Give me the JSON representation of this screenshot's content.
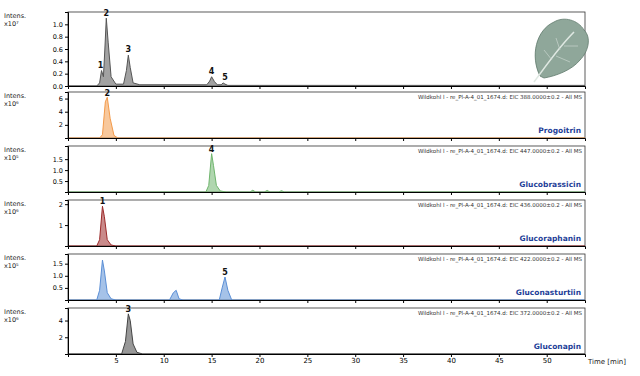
{
  "chart_data": [
    {
      "type": "line",
      "ylabel": [
        "Intens.",
        "x10⁷"
      ],
      "x": [
        0,
        3.0,
        3.3,
        3.5,
        3.7,
        3.85,
        4.0,
        4.2,
        4.5,
        5.0,
        5.8,
        6.1,
        6.3,
        6.5,
        6.8,
        7.5,
        14.5,
        14.8,
        15.0,
        15.3,
        15.6,
        16.0,
        16.2,
        16.4,
        16.7,
        20,
        30,
        40,
        54
      ],
      "series": [
        {
          "color": "#555555",
          "values": [
            0,
            0,
            0.05,
            0.25,
            0.15,
            0.6,
            1.1,
            0.7,
            0.15,
            0.03,
            0.03,
            0.25,
            0.5,
            0.3,
            0.05,
            0.02,
            0.02,
            0.08,
            0.15,
            0.07,
            0.02,
            0.02,
            0.05,
            0.03,
            0.01,
            0.01,
            0.01,
            0.01,
            0.01
          ]
        }
      ],
      "xlim": [
        0,
        54
      ],
      "xticks": [
        5,
        10,
        15,
        20,
        25,
        30,
        35,
        40,
        45,
        50
      ],
      "ylim": [
        0,
        1.2
      ],
      "yticks": [
        {
          "value": 0,
          "label": "0.0"
        },
        0.2,
        0.4,
        0.6,
        0.8,
        {
          "value": 1,
          "label": "1.0"
        }
      ],
      "tick_labels": "y",
      "annotations": [
        {
          "text": "1",
          "x": 3.4,
          "y": 0.28
        },
        {
          "text": "2",
          "x": 4.0,
          "y": 1.12
        },
        {
          "text": "3",
          "x": 6.3,
          "y": 0.53
        },
        {
          "text": "4",
          "x": 15.0,
          "y": 0.18
        },
        {
          "text": "5",
          "x": 16.4,
          "y": 0.08
        }
      ]
    },
    {
      "type": "line",
      "title": "Wildkohl l - re_Pl-A-4_01_1674.d: EIC 388.0000±0.2 - All MS",
      "subtitle": "Progoitrin",
      "ylabel": [
        "Intens.",
        "x10⁶"
      ],
      "x": [
        0,
        3.3,
        3.6,
        3.9,
        4.1,
        4.4,
        4.8,
        5.2,
        10,
        20,
        30,
        40,
        54
      ],
      "series": [
        {
          "color": "#f39a4a",
          "values": [
            0,
            0,
            0.5,
            5.5,
            6.2,
            3.0,
            0.4,
            0,
            0,
            0,
            0,
            0,
            0
          ]
        }
      ],
      "xlim": [
        0,
        54
      ],
      "xticks": [
        5,
        10,
        15,
        20,
        25,
        30,
        35,
        40,
        45,
        50
      ],
      "ylim": [
        0,
        7
      ],
      "yticks": [
        2,
        4,
        6
      ],
      "tick_labels": "y",
      "annotations": [
        {
          "text": "2",
          "x": 4.1,
          "y": 6.3
        }
      ]
    },
    {
      "type": "line",
      "title": "Wildkohl l - re_Pl-A-4_01_1674.d: EIC 447.0000±0.2 - All MS",
      "subtitle": "Glucobrassicin",
      "ylabel": [
        "Intens.",
        "x10⁵"
      ],
      "x": [
        0,
        14.4,
        14.7,
        15.0,
        15.2,
        15.5,
        15.9,
        16.5,
        19.0,
        19.3,
        19.6,
        20.5,
        20.8,
        21.1,
        22.0,
        22.3,
        22.6,
        25,
        54
      ],
      "series": [
        {
          "color": "#6fb56d",
          "values": [
            0,
            0,
            0.3,
            1.75,
            1.2,
            0.3,
            0.05,
            0,
            0,
            0.08,
            0,
            0,
            0.07,
            0,
            0,
            0.06,
            0,
            0,
            0
          ]
        }
      ],
      "xlim": [
        0,
        54
      ],
      "xticks": [
        5,
        10,
        15,
        20,
        25,
        30,
        35,
        40,
        45,
        50
      ],
      "ylim": [
        0,
        2.1
      ],
      "yticks": [
        0.5,
        {
          "value": 1,
          "label": "1.0"
        },
        1.5
      ],
      "tick_labels": "y",
      "annotations": [
        {
          "text": "4",
          "x": 15.0,
          "y": 1.8
        }
      ]
    },
    {
      "type": "line",
      "title": "Wildkohl l - re_Pl-A-4_01_1674.d: EIC 436.0000±0.2 - All MS",
      "subtitle": "Glucoraphanin",
      "ylabel": [
        "Intens.",
        "x10⁶"
      ],
      "x": [
        0,
        3.0,
        3.3,
        3.6,
        3.8,
        4.1,
        4.5,
        5,
        54
      ],
      "series": [
        {
          "color": "#9c2a2a",
          "values": [
            0,
            0,
            0.3,
            1.9,
            1.4,
            0.3,
            0.05,
            0,
            0
          ]
        }
      ],
      "xlim": [
        0,
        54
      ],
      "xticks": [
        5,
        10,
        15,
        20,
        25,
        30,
        35,
        40,
        45,
        50
      ],
      "ylim": [
        0,
        2.2
      ],
      "yticks": [
        1,
        2
      ],
      "tick_labels": "y",
      "annotations": [
        {
          "text": "1",
          "x": 3.6,
          "y": 1.95
        }
      ]
    },
    {
      "type": "line",
      "title": "Wildkohl l - re_Pl-A-4_01_1674.d: EIC 422.0000±0.2 - All MS",
      "subtitle": "Gluconasturtiin",
      "ylabel": [
        "Intens.",
        "x10⁵"
      ],
      "x": [
        0,
        3.0,
        3.3,
        3.6,
        3.8,
        4.1,
        4.5,
        5,
        10.6,
        11.0,
        11.3,
        11.6,
        12,
        15.8,
        16.1,
        16.4,
        16.7,
        17.1,
        54
      ],
      "series": [
        {
          "color": "#5b8fd6",
          "values": [
            0,
            0,
            0.4,
            1.65,
            1.2,
            0.3,
            0.05,
            0,
            0,
            0.3,
            0.4,
            0.05,
            0,
            0,
            0.5,
            0.95,
            0.4,
            0,
            0
          ]
        }
      ],
      "xlim": [
        0,
        54
      ],
      "xticks": [
        5,
        10,
        15,
        20,
        25,
        30,
        35,
        40,
        45,
        50
      ],
      "ylim": [
        0,
        1.9
      ],
      "yticks": [
        0.5,
        {
          "value": 1,
          "label": "1.0"
        },
        1.5
      ],
      "tick_labels": "y",
      "annotations": [
        {
          "text": "5",
          "x": 16.4,
          "y": 1.0
        }
      ]
    },
    {
      "type": "line",
      "title": "Wildkohl l - re_Pl-A-4_01_1674.d: EIC 372.0000±0.2 - All MS",
      "subtitle": "Gluconapin",
      "ylabel": [
        "Intens.",
        "x10⁶"
      ],
      "xlabel": "Time [min]",
      "x": [
        0,
        5.6,
        6.0,
        6.3,
        6.5,
        6.8,
        7.2,
        7.8,
        54
      ],
      "series": [
        {
          "color": "#444444",
          "values": [
            0,
            0,
            1.5,
            4.8,
            4.0,
            1.2,
            0.2,
            0,
            0
          ]
        }
      ],
      "xlim": [
        0,
        54
      ],
      "xticks": [
        5,
        10,
        15,
        20,
        25,
        30,
        35,
        40,
        45,
        50
      ],
      "ylim": [
        0,
        5.5
      ],
      "yticks": [
        2,
        4
      ],
      "annotations": [
        {
          "text": "3",
          "x": 6.3,
          "y": 4.9
        }
      ]
    }
  ]
}
